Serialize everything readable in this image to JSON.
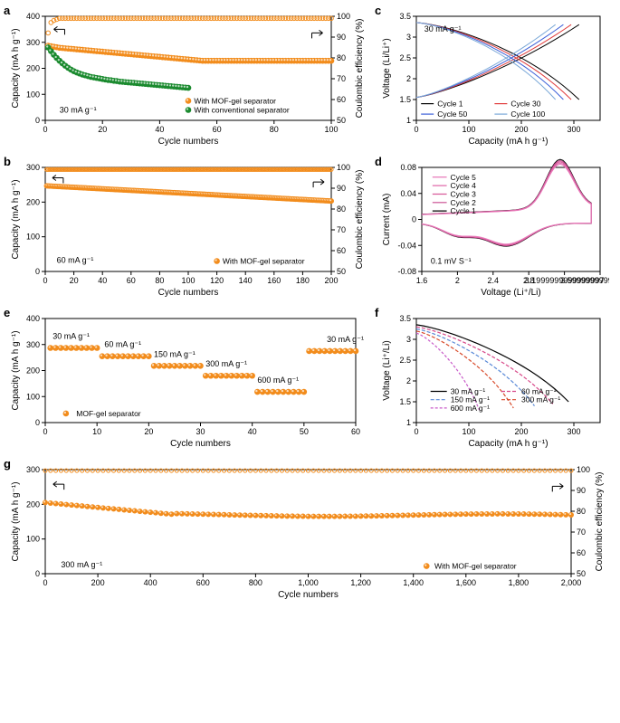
{
  "colors": {
    "orange": "#f28c1c",
    "green": "#1a8a2e",
    "cycle1": "#000000",
    "cycle50": "#3b5fd8",
    "cycle30": "#e03a3a",
    "cycle100": "#7aa8d8",
    "cv1": "#000000",
    "cv2": "#c94a8f",
    "cv3": "#d85a9a",
    "cv4": "#e06aaa",
    "cv5": "#e87aba",
    "rate30": "#000000",
    "rate60": "#d84a8a",
    "rate150": "#5a8ad8",
    "rate300": "#d84a2a",
    "rate600": "#c85ac8"
  },
  "panel_a": {
    "label": "a",
    "xlabel": "Cycle numbers",
    "ylabel_left": "Capacity (mA h g⁻¹)",
    "ylabel_right": "Coulombic efficiency (%)",
    "xlim": [
      0,
      100
    ],
    "xtick_step": 20,
    "ylim_left": [
      0,
      400
    ],
    "ytick_left_step": 100,
    "ylim_right": [
      50,
      100
    ],
    "ytick_right_step": 10,
    "anno": "30 mA g⁻¹",
    "legend": [
      "With MOF-gel separator",
      "With conventional separator"
    ],
    "mof_capacity": [
      287,
      285,
      283,
      281,
      279,
      278,
      277,
      276,
      275,
      274,
      273,
      272,
      271,
      270,
      269,
      268,
      267,
      266,
      265,
      264,
      263,
      262,
      261,
      260,
      259,
      258,
      257,
      256,
      255,
      254,
      253,
      252,
      251,
      250,
      249,
      248,
      247,
      246,
      245,
      244,
      243,
      242,
      241,
      240,
      239,
      238,
      237,
      236,
      235,
      234,
      233,
      232,
      231,
      230,
      229,
      229,
      229,
      229,
      229,
      229,
      229,
      229,
      229,
      229,
      229,
      229,
      229,
      229,
      229,
      229,
      229,
      229,
      229,
      229,
      229,
      229,
      229,
      229,
      229,
      229,
      229,
      229,
      229,
      229,
      229,
      229,
      229,
      229,
      229,
      229,
      229,
      229,
      229,
      229,
      229,
      229,
      229,
      229,
      229,
      229
    ],
    "conv_capacity": [
      280,
      266,
      252,
      240,
      229,
      219,
      210,
      202,
      195,
      189,
      184,
      180,
      176,
      173,
      170,
      167,
      165,
      163,
      161,
      159,
      157,
      155,
      154,
      152,
      151,
      149,
      148,
      147,
      146,
      145,
      144,
      143,
      142,
      141,
      140,
      139,
      138,
      137,
      136,
      135,
      134,
      133,
      132,
      131,
      130,
      129,
      128,
      127,
      126,
      125
    ],
    "mof_ce": [
      92,
      97,
      98,
      98.5,
      99,
      99,
      99,
      99,
      99,
      99,
      99,
      99,
      99,
      99,
      99,
      99,
      99,
      99,
      99,
      99,
      99,
      99,
      99,
      99,
      99,
      99,
      99,
      99,
      99,
      99,
      99,
      99,
      99,
      99,
      99,
      99,
      99,
      99,
      99,
      99,
      99,
      99,
      99,
      99,
      99,
      99,
      99,
      99,
      99,
      99,
      99,
      99,
      99,
      99,
      99,
      99,
      99,
      99,
      99,
      99,
      99,
      99,
      99,
      99,
      99,
      99,
      99,
      99,
      99,
      99,
      99,
      99,
      99,
      99,
      99,
      99,
      99,
      99,
      99,
      99,
      99,
      99,
      99,
      99,
      99,
      99,
      99,
      99,
      99,
      99,
      99,
      99,
      99,
      99,
      99,
      99,
      99,
      99,
      99,
      99
    ]
  },
  "panel_b": {
    "label": "b",
    "xlabel": "Cycle numbers",
    "ylabel_left": "Capacity (mA h g⁻¹)",
    "ylabel_right": "Coulombic efficiency (%)",
    "xlim": [
      0,
      200
    ],
    "xtick_step": 20,
    "ylim_left": [
      0,
      300
    ],
    "ytick_left_step": 100,
    "ylim_right": [
      50,
      100
    ],
    "ytick_right_step": 10,
    "anno": "60 mA g⁻¹",
    "legend": [
      "With MOF-gel separator"
    ],
    "capacity_start": 247,
    "capacity_end": 203,
    "ce": 99
  },
  "panel_c": {
    "label": "c",
    "xlabel": "Capacity (mA h g⁻¹)",
    "ylabel": "Voltage (Li/Li⁺)",
    "xlim": [
      0,
      350
    ],
    "xticks": [
      0,
      100,
      200,
      300
    ],
    "ylim": [
      1.0,
      3.5
    ],
    "ytick_step": 0.5,
    "anno": "30 mA g⁻¹",
    "legend": [
      "Cycle 1",
      "Cycle 50",
      "Cycle 30",
      "Cycle 100"
    ]
  },
  "panel_d": {
    "label": "d",
    "xlabel": "Voltage (Li⁺/Li)",
    "ylabel": "Current (mA)",
    "xlim": [
      1.6,
      3.6
    ],
    "xtick_step": 0.4,
    "ylim": [
      -0.08,
      0.08
    ],
    "ytick_step": 0.04,
    "anno": "0.1 mV S⁻¹",
    "legend": [
      "Cycle 5",
      "Cycle 4",
      "Cycle 3",
      "Cycle 2",
      "Cycle 1"
    ]
  },
  "panel_e": {
    "label": "e",
    "xlabel": "Cycle numbers",
    "ylabel": "Capacity (mA h g⁻¹)",
    "xlim": [
      0,
      60
    ],
    "xtick_step": 10,
    "ylim": [
      0,
      400
    ],
    "ytick_step": 100,
    "legend": [
      "MOF-gel separator"
    ],
    "rates": [
      "30 mA g⁻¹",
      "60 mA g⁻¹",
      "150 mA g⁻¹",
      "300 mA g⁻¹",
      "600 mA g⁻¹",
      "30 mA g⁻¹"
    ],
    "values": [
      287,
      255,
      218,
      180,
      118,
      275
    ]
  },
  "panel_f": {
    "label": "f",
    "xlabel": "Capacity (mA h g⁻¹)",
    "ylabel": "Voltage (Li⁺/Li)",
    "xlim": [
      0,
      350
    ],
    "xticks": [
      0,
      100,
      200,
      300
    ],
    "ylim": [
      1.0,
      3.5
    ],
    "ytick_step": 0.5,
    "legend": [
      "30 mA g⁻¹",
      "60 mA g⁻¹",
      "150 mA g⁻¹",
      "300 mA g⁻¹",
      "600 mA g⁻¹"
    ]
  },
  "panel_g": {
    "label": "g",
    "xlabel": "Cycle numbers",
    "ylabel_left": "Capacity (mA h g⁻¹)",
    "ylabel_right": "Coulombic efficiency (%)",
    "xlim": [
      0,
      2000
    ],
    "xtick_step": 200,
    "ylim_left": [
      0,
      300
    ],
    "ytick_left_step": 100,
    "ylim_right": [
      50,
      100
    ],
    "ytick_right_step": 10,
    "anno": "300 mA g⁻¹",
    "legend": [
      "With MOF-gel separator"
    ],
    "capacity_start": 205,
    "capacity_mid": 170,
    "capacity_end": 168,
    "ce": 99.5
  }
}
